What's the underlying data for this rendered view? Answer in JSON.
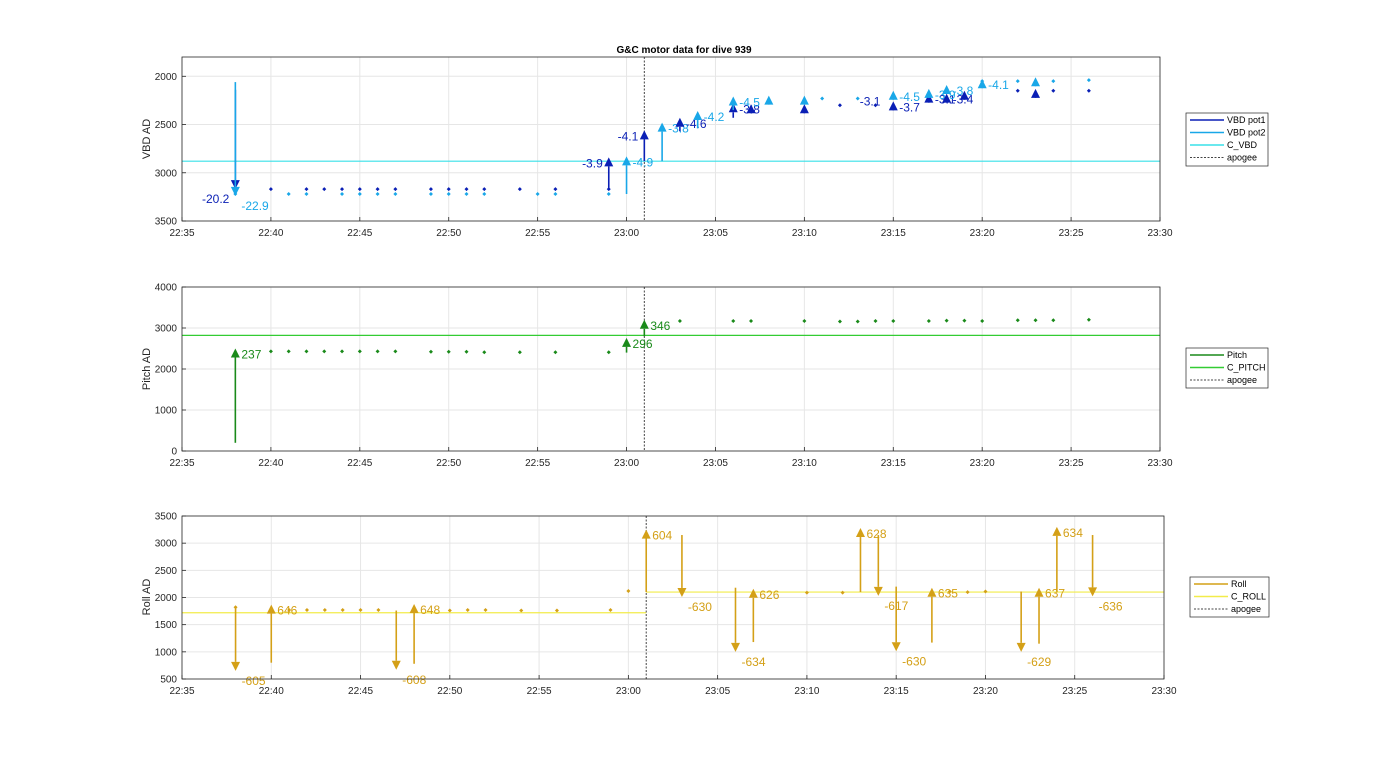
{
  "chart_data": [
    {
      "type": "scatter",
      "title": "G&C motor data for dive 939",
      "ylabel": "VBD AD",
      "xlabel": "",
      "xlim": [
        "22:35",
        "23:30"
      ],
      "ylim": [
        3500,
        1800
      ],
      "y_reversed": true,
      "yticks": [
        2000,
        2500,
        3000,
        3500
      ],
      "xticks": [
        "22:35",
        "22:40",
        "22:45",
        "22:50",
        "22:55",
        "23:00",
        "23:05",
        "23:10",
        "23:15",
        "23:20",
        "23:25",
        "23:30"
      ],
      "grid": true,
      "legend_position": "right",
      "legend": [
        "VBD pot1",
        "VBD pot2",
        "C_VBD",
        "apogee"
      ],
      "colors": {
        "pot1": "#0a1fb5",
        "pot2": "#19a7e8",
        "c_line": "#38e0e8",
        "apogee": "#444444"
      },
      "c_value": 2880,
      "apogee": "23:01",
      "series": [
        {
          "name": "VBD pot1",
          "x": [
            "22:38",
            "22:40",
            "22:42",
            "22:43",
            "22:44",
            "22:45",
            "22:46",
            "22:47",
            "22:49",
            "22:50",
            "22:51",
            "22:52",
            "22:54",
            "22:56",
            "22:59",
            "23:12",
            "23:14",
            "23:22",
            "23:24",
            "23:26"
          ],
          "y": [
            3170,
            3170,
            3170,
            3170,
            3170,
            3170,
            3170,
            3170,
            3170,
            3170,
            3170,
            3170,
            3170,
            3170,
            3170,
            2300,
            2300,
            2150,
            2150,
            2150
          ]
        },
        {
          "name": "VBD pot2",
          "x": [
            "22:38",
            "22:41",
            "22:42",
            "22:44",
            "22:45",
            "22:46",
            "22:47",
            "22:49",
            "22:50",
            "22:51",
            "22:52",
            "22:55",
            "22:56",
            "22:59",
            "23:11",
            "23:13",
            "23:20",
            "23:22",
            "23:24",
            "23:26"
          ],
          "y": [
            3220,
            3220,
            3220,
            3220,
            3220,
            3220,
            3220,
            3220,
            3220,
            3220,
            3220,
            3220,
            3220,
            3220,
            2230,
            2230,
            2050,
            2050,
            2050,
            2040
          ]
        }
      ],
      "moves": [
        {
          "x": "22:38",
          "from": 2140,
          "to": 3170,
          "label": "-20.2",
          "series": "pot1"
        },
        {
          "x": "22:38",
          "from": 2060,
          "to": 3240,
          "label": "-22.9",
          "series": "pot2"
        },
        {
          "x": "22:59",
          "from": 3170,
          "to": 2840,
          "label": "-3.9",
          "series": "pot1"
        },
        {
          "x": "23:00",
          "from": 3220,
          "to": 2830,
          "label": "-4.9",
          "series": "pot2"
        },
        {
          "x": "23:01",
          "from": 2880,
          "to": 2560,
          "label": "-4.1",
          "series": "pot1"
        },
        {
          "x": "23:02",
          "from": 2880,
          "to": 2480,
          "label": "-3.8",
          "series": "pot2"
        },
        {
          "x": "23:03",
          "from": 2570,
          "to": 2430,
          "label": "-4.6",
          "series": "pot1"
        },
        {
          "x": "23:04",
          "from": 2540,
          "to": 2360,
          "label": "-4.2",
          "series": "pot2"
        },
        {
          "x": "23:06",
          "from": 2430,
          "to": 2280,
          "label": "-3.8",
          "series": "pot1"
        },
        {
          "x": "23:06",
          "from": 2350,
          "to": 2210,
          "label": "-4.5",
          "series": "pot2"
        },
        {
          "x": "23:07",
          "from": 2330,
          "to": 2290,
          "label": "",
          "series": "pot1"
        },
        {
          "x": "23:08",
          "from": 2260,
          "to": 2200,
          "label": "",
          "series": "pot2"
        },
        {
          "x": "23:10",
          "from": 2320,
          "to": 2290,
          "label": "",
          "series": "pot1"
        },
        {
          "x": "23:10",
          "from": 2250,
          "to": 2200,
          "label": "",
          "series": "pot2"
        },
        {
          "x": "23:15",
          "from": 2300,
          "to": 2260,
          "label": "-3.7",
          "series": "pot1"
        },
        {
          "x": "23:15",
          "from": 2220,
          "to": 2150,
          "label": "-4.5",
          "series": "pot2"
        },
        {
          "x": "23:17",
          "from": 2210,
          "to": 2180,
          "label": "-3.1",
          "series": "pot1"
        },
        {
          "x": "23:17",
          "from": 2170,
          "to": 2130,
          "label": "-3.9",
          "series": "pot2"
        },
        {
          "x": "23:18",
          "from": 2210,
          "to": 2180,
          "label": "-3.4",
          "series": "pot1"
        },
        {
          "x": "23:18",
          "from": 2130,
          "to": 2090,
          "label": "-3.8",
          "series": "pot2"
        },
        {
          "x": "23:19",
          "from": 2180,
          "to": 2150,
          "label": "",
          "series": "pot1"
        },
        {
          "x": "23:20",
          "from": 2080,
          "to": 2030,
          "label": "-4.1",
          "series": "pot2"
        },
        {
          "x": "23:23",
          "from": 2170,
          "to": 2130,
          "label": "",
          "series": "pot1"
        },
        {
          "x": "23:23",
          "from": 2050,
          "to": 2010,
          "label": "",
          "series": "pot2"
        }
      ],
      "extra_labels": [
        {
          "x": "23:13",
          "y": 2260,
          "text": "-3.1",
          "series": "pot1"
        }
      ]
    },
    {
      "type": "scatter",
      "title": "",
      "ylabel": "Pitch AD",
      "xlabel": "",
      "xlim": [
        "22:35",
        "23:30"
      ],
      "ylim": [
        0,
        4000
      ],
      "yticks": [
        0,
        1000,
        2000,
        3000,
        4000
      ],
      "xticks": [
        "22:35",
        "22:40",
        "22:45",
        "22:50",
        "22:55",
        "23:00",
        "23:05",
        "23:10",
        "23:15",
        "23:20",
        "23:25",
        "23:30"
      ],
      "grid": true,
      "legend_position": "right",
      "legend": [
        "Pitch",
        "C_PITCH",
        "apogee"
      ],
      "colors": {
        "main": "#1a8a1a",
        "c_line": "#33cc33",
        "apogee": "#444444"
      },
      "c_value": 2820,
      "apogee": "23:01",
      "series": [
        {
          "name": "Pitch",
          "x": [
            "22:40",
            "22:41",
            "22:42",
            "22:43",
            "22:44",
            "22:45",
            "22:46",
            "22:47",
            "22:49",
            "22:50",
            "22:51",
            "22:52",
            "22:54",
            "22:56",
            "22:59",
            "23:03",
            "23:06",
            "23:07",
            "23:10",
            "23:12",
            "23:13",
            "23:14",
            "23:15",
            "23:17",
            "23:18",
            "23:19",
            "23:20",
            "23:22",
            "23:23",
            "23:24",
            "23:26"
          ],
          "y": [
            2430,
            2430,
            2430,
            2430,
            2430,
            2430,
            2430,
            2430,
            2420,
            2420,
            2420,
            2410,
            2410,
            2410,
            2410,
            3170,
            3170,
            3170,
            3170,
            3160,
            3160,
            3170,
            3170,
            3170,
            3180,
            3180,
            3170,
            3190,
            3190,
            3190,
            3200
          ]
        }
      ],
      "moves": [
        {
          "x": "22:38",
          "from": 200,
          "to": 2500,
          "label": "237"
        },
        {
          "x": "23:00",
          "from": 2400,
          "to": 2760,
          "label": "296"
        },
        {
          "x": "23:01",
          "from": 2800,
          "to": 3200,
          "label": "346"
        }
      ]
    },
    {
      "type": "scatter",
      "title": "",
      "ylabel": "Roll AD",
      "xlabel": "",
      "xlim": [
        "22:35",
        "23:30"
      ],
      "ylim": [
        500,
        3500
      ],
      "yticks": [
        500,
        1000,
        1500,
        2000,
        2500,
        3000,
        3500
      ],
      "xticks": [
        "22:35",
        "22:40",
        "22:45",
        "22:50",
        "22:55",
        "23:00",
        "23:05",
        "23:10",
        "23:15",
        "23:20",
        "23:25",
        "23:30"
      ],
      "grid": true,
      "legend_position": "right",
      "legend": [
        "Roll",
        "C_ROLL",
        "apogee"
      ],
      "colors": {
        "main": "#d4a017",
        "c_line": "#f2ec4a",
        "apogee": "#444444"
      },
      "c_value_before": 1720,
      "c_value_after": 2100,
      "apogee": "23:01",
      "series": [
        {
          "name": "Roll",
          "x": [
            "22:38",
            "22:41",
            "22:42",
            "22:43",
            "22:44",
            "22:45",
            "22:46",
            "22:50",
            "22:51",
            "22:52",
            "22:54",
            "22:56",
            "22:59",
            "23:00",
            "23:10",
            "23:12",
            "23:18",
            "23:19",
            "23:20"
          ],
          "y": [
            1820,
            1770,
            1770,
            1770,
            1770,
            1770,
            1770,
            1760,
            1770,
            1770,
            1760,
            1760,
            1770,
            2120,
            2090,
            2090,
            2110,
            2100,
            2110
          ]
        }
      ],
      "moves": [
        {
          "x": "22:38",
          "from": 1820,
          "to": 650,
          "label": "-605"
        },
        {
          "x": "22:40",
          "from": 800,
          "to": 1870,
          "label": "646"
        },
        {
          "x": "22:47",
          "from": 1760,
          "to": 670,
          "label": "-608"
        },
        {
          "x": "22:48",
          "from": 780,
          "to": 1880,
          "label": "648"
        },
        {
          "x": "23:01",
          "from": 2100,
          "to": 3250,
          "label": "604"
        },
        {
          "x": "23:03",
          "from": 3150,
          "to": 2010,
          "label": "-630"
        },
        {
          "x": "23:06",
          "from": 2180,
          "to": 1000,
          "label": "-634"
        },
        {
          "x": "23:07",
          "from": 1180,
          "to": 2160,
          "label": "626"
        },
        {
          "x": "23:13",
          "from": 2100,
          "to": 3280,
          "label": "628"
        },
        {
          "x": "23:14",
          "from": 3150,
          "to": 2030,
          "label": "-617"
        },
        {
          "x": "23:15",
          "from": 2200,
          "to": 1010,
          "label": "-630"
        },
        {
          "x": "23:17",
          "from": 1170,
          "to": 2180,
          "label": "635"
        },
        {
          "x": "23:22",
          "from": 2110,
          "to": 1000,
          "label": "-629"
        },
        {
          "x": "23:23",
          "from": 1150,
          "to": 2180,
          "label": "637"
        },
        {
          "x": "23:24",
          "from": 2110,
          "to": 3300,
          "label": "634"
        },
        {
          "x": "23:26",
          "from": 3150,
          "to": 2020,
          "label": "-636"
        }
      ]
    }
  ]
}
